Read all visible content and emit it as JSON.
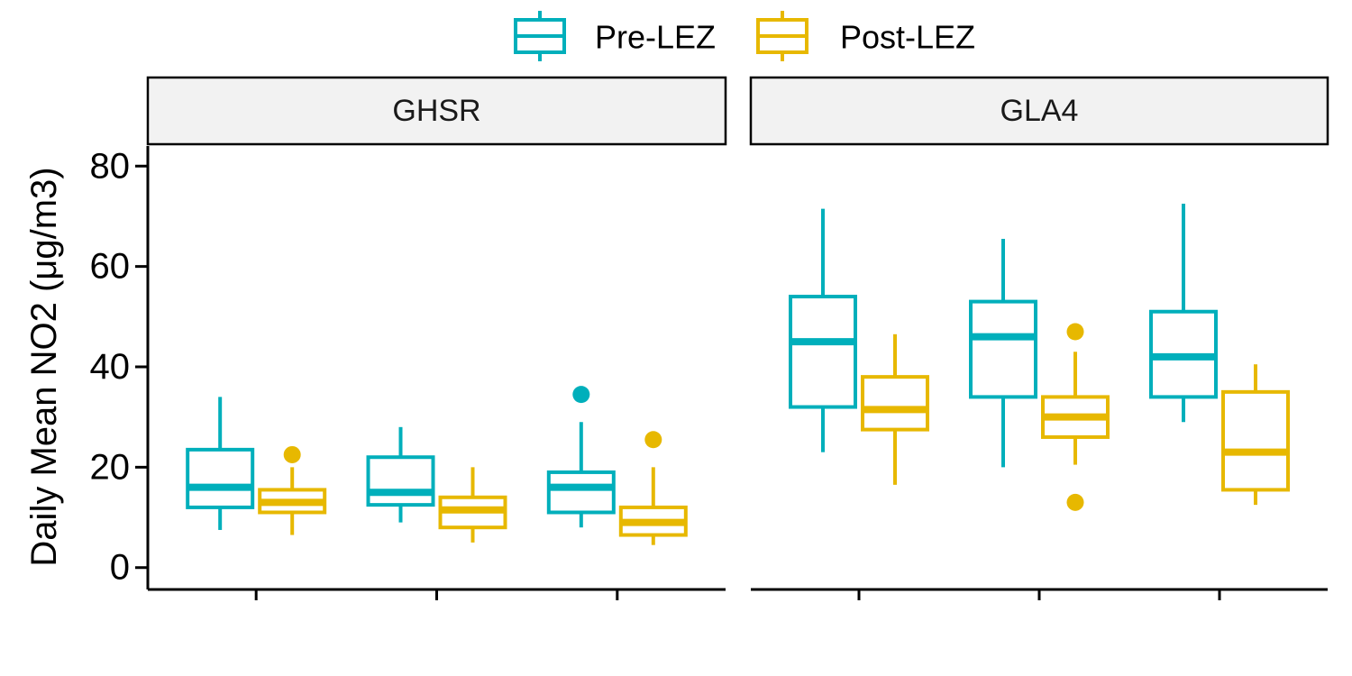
{
  "chart_data": {
    "type": "boxplot",
    "ylabel": "Daily Mean NO2 (μg/m3)",
    "ylim": [
      -4,
      84
    ],
    "yticks": [
      0,
      20,
      40,
      60,
      80
    ],
    "legend": {
      "placement": "top-center",
      "entries": [
        {
          "name": "Pre-LEZ",
          "color": "#00AFBB"
        },
        {
          "name": "Post-LEZ",
          "color": "#E7B800"
        }
      ]
    },
    "panels": [
      {
        "name": "GHSR",
        "groups": [
          {
            "pre": {
              "whisker_low": 7.5,
              "q1": 12,
              "median": 16,
              "q3": 23.5,
              "whisker_high": 34,
              "outliers": []
            },
            "post": {
              "whisker_low": 6.5,
              "q1": 11,
              "median": 13,
              "q3": 15.5,
              "whisker_high": 20,
              "outliers": [
                22.5
              ]
            }
          },
          {
            "pre": {
              "whisker_low": 9,
              "q1": 12.5,
              "median": 15,
              "q3": 22,
              "whisker_high": 28,
              "outliers": []
            },
            "post": {
              "whisker_low": 5,
              "q1": 8,
              "median": 11.5,
              "q3": 14,
              "whisker_high": 20,
              "outliers": []
            }
          },
          {
            "pre": {
              "whisker_low": 8,
              "q1": 11,
              "median": 16,
              "q3": 19,
              "whisker_high": 29,
              "outliers": [
                34.5
              ]
            },
            "post": {
              "whisker_low": 4.5,
              "q1": 6.5,
              "median": 9,
              "q3": 12,
              "whisker_high": 20,
              "outliers": [
                25.5
              ]
            }
          }
        ]
      },
      {
        "name": "GLA4",
        "groups": [
          {
            "pre": {
              "whisker_low": 23,
              "q1": 32,
              "median": 45,
              "q3": 54,
              "whisker_high": 71.5,
              "outliers": []
            },
            "post": {
              "whisker_low": 16.5,
              "q1": 27.5,
              "median": 31.5,
              "q3": 38,
              "whisker_high": 46.5,
              "outliers": []
            }
          },
          {
            "pre": {
              "whisker_low": 20,
              "q1": 34,
              "median": 46,
              "q3": 53,
              "whisker_high": 65.5,
              "outliers": []
            },
            "post": {
              "whisker_low": 20.5,
              "q1": 26,
              "median": 30,
              "q3": 34,
              "whisker_high": 43,
              "outliers": [
                13,
                47
              ]
            }
          },
          {
            "pre": {
              "whisker_low": 29,
              "q1": 34,
              "median": 42,
              "q3": 51,
              "whisker_high": 72.5,
              "outliers": []
            },
            "post": {
              "whisker_low": 12.5,
              "q1": 15.5,
              "median": 23,
              "q3": 35,
              "whisker_high": 40.5,
              "outliers": []
            }
          }
        ]
      }
    ]
  }
}
